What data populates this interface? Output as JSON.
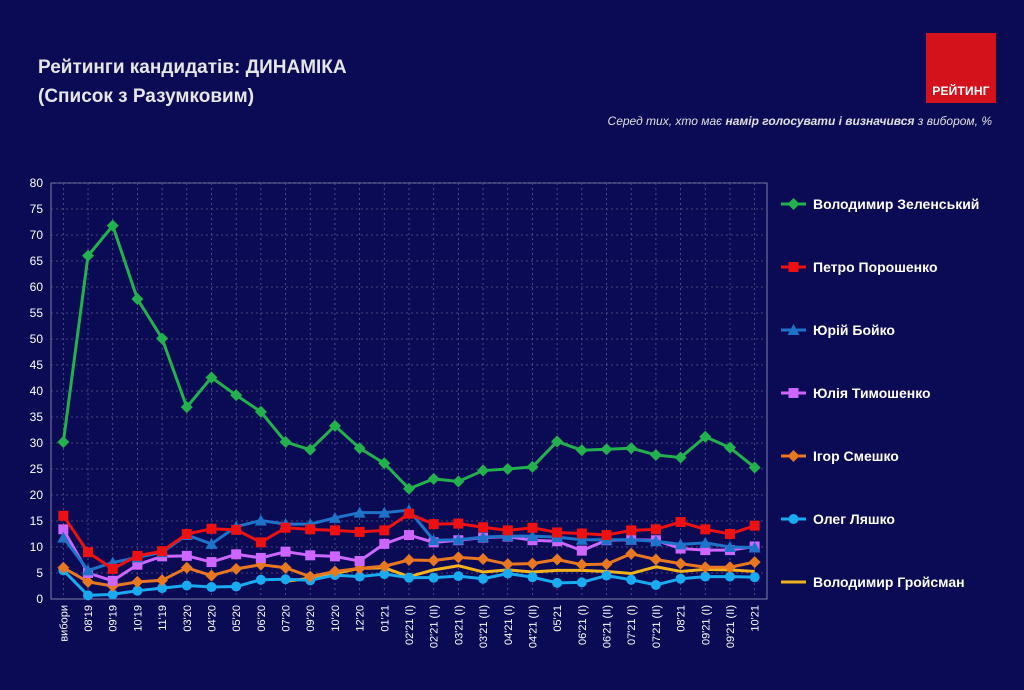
{
  "header": {
    "title_line1": "Рейтинги кандидатів: ДИНАМІКА",
    "title_line2": "(Список з Разумковим)",
    "logo_text": "РЕЙТИНГ",
    "subtitle_prefix": "Серед тих, хто має ",
    "subtitle_bold": "намір голосувати і визначився",
    "subtitle_suffix": " з вибором, %"
  },
  "colors": {
    "background": "#0a0a55",
    "logo": "#d3121b"
  },
  "chart_data": {
    "type": "line",
    "ylim": [
      0,
      80
    ],
    "yticks": [
      0,
      5,
      10,
      15,
      20,
      25,
      30,
      35,
      40,
      45,
      50,
      55,
      60,
      65,
      70,
      75,
      80
    ],
    "grid": true,
    "legend_position": "right",
    "categories": [
      "вибори",
      "08'19",
      "09'19",
      "10'19",
      "11'19",
      "03'20",
      "04'20",
      "05'20",
      "06'20",
      "07'20",
      "09'20",
      "10'20",
      "12'20",
      "01'21",
      "02'21 (I)",
      "02'21 (II)",
      "03'21 (I)",
      "03'21 (II)",
      "04'21 (I)",
      "04'21 (II)",
      "05'21",
      "06'21 (I)",
      "06'21 (II)",
      "07'21 (I)",
      "07'21 (II)",
      "08'21",
      "09'21 (I)",
      "09'21 (II)",
      "10'21"
    ],
    "series": [
      {
        "name": "Володимир Зеленський",
        "color": "#22b14c",
        "marker": "diamond",
        "values": [
          30.2,
          66,
          71.8,
          57.7,
          50.1,
          36.9,
          42.6,
          39.2,
          36,
          30.2,
          28.7,
          33.3,
          29,
          26.1,
          21.2,
          23.1,
          22.6,
          24.7,
          25,
          25.4,
          30.3,
          28.6,
          28.8,
          29,
          27.7,
          27.2,
          31.2,
          29.1,
          25.3
        ]
      },
      {
        "name": "Петро Порошенко",
        "color": "#ee1111",
        "marker": "square",
        "values": [
          16,
          9,
          5.8,
          8.3,
          9.2,
          12.5,
          13.5,
          13.3,
          10.9,
          13.7,
          13.4,
          13.2,
          12.9,
          13.2,
          16.4,
          14.4,
          14.5,
          13.8,
          13.2,
          13.7,
          12.8,
          12.6,
          12.3,
          13.2,
          13.4,
          14.8,
          13.4,
          12.5,
          14.1
        ]
      },
      {
        "name": "Юрій Бойко",
        "color": "#1e72c8",
        "marker": "triangle",
        "values": [
          11.8,
          5.5,
          7,
          8,
          9,
          12.3,
          10.6,
          13.9,
          15.1,
          14.4,
          14.4,
          15.6,
          16.6,
          16.6,
          17.1,
          11.3,
          11.4,
          11.9,
          12.1,
          12.1,
          11.9,
          11.4,
          11.4,
          11.4,
          11.1,
          10.5,
          10.8,
          10,
          9.9
        ]
      },
      {
        "name": "Юлія Тимошенко",
        "color": "#cc66ff",
        "marker": "square",
        "values": [
          13.4,
          5,
          3.5,
          6.6,
          8.2,
          8.3,
          7.1,
          8.6,
          7.9,
          9.1,
          8.4,
          8.2,
          7.3,
          10.6,
          12.3,
          10.9,
          11.3,
          11.8,
          12,
          11.3,
          11.1,
          9.3,
          11.3,
          11.4,
          11.3,
          9.7,
          9.4,
          9.4,
          10.1
        ]
      },
      {
        "name": "Ігор Смешко",
        "color": "#e87722",
        "marker": "diamond",
        "values": [
          6,
          3.3,
          2.5,
          3.3,
          3.6,
          6,
          4.5,
          5.8,
          6.6,
          6,
          4.3,
          5.3,
          5.9,
          6.3,
          7.5,
          7.4,
          8,
          7.7,
          6.7,
          6.8,
          7.6,
          6.6,
          6.7,
          8.7,
          7.6,
          6.8,
          6.1,
          6.1,
          7.1
        ]
      },
      {
        "name": "Олег Ляшко",
        "color": "#19aaf0",
        "marker": "circle",
        "values": [
          5.5,
          0.7,
          0.9,
          1.6,
          2.1,
          2.6,
          2.3,
          2.4,
          3.7,
          3.8,
          3.6,
          4.6,
          4.3,
          4.8,
          4.1,
          4.1,
          4.4,
          3.9,
          4.9,
          4.2,
          3.1,
          3.2,
          4.5,
          3.7,
          2.7,
          3.9,
          4.3,
          4.3,
          4.2
        ]
      },
      {
        "name": "Володимир Гройсман",
        "color": "#f2b21e",
        "marker": "none",
        "values": [
          null,
          null,
          null,
          null,
          null,
          null,
          null,
          null,
          null,
          3.4,
          4,
          4.9,
          5.9,
          6,
          4.3,
          5.6,
          6.4,
          5.2,
          5.6,
          5.2,
          5.5,
          5.5,
          5.3,
          4.9,
          6.2,
          5.3,
          5.7,
          5.6,
          5.3
        ]
      }
    ]
  }
}
